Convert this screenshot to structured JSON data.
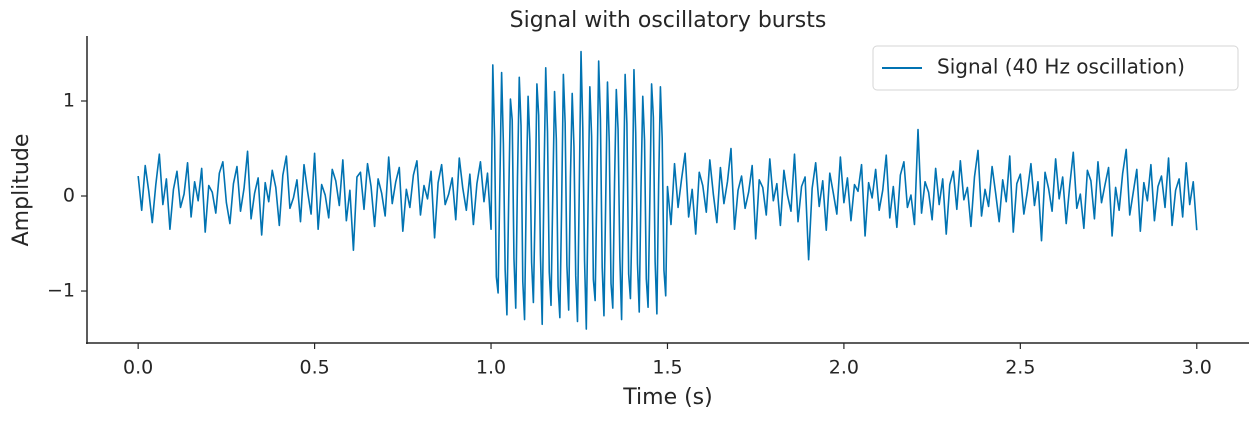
{
  "chart_data": {
    "type": "line",
    "title": "Signal with oscillatory bursts",
    "x_label": "Time (s)",
    "y_label": "Amplitude",
    "legend_position": "upper right",
    "xlim": [
      -0.145,
      3.148
    ],
    "ylim": [
      -1.547,
      1.684
    ],
    "xticks": [
      {
        "value": 0,
        "label": "0.0"
      },
      0.5,
      {
        "value": 1,
        "label": "1.0"
      },
      1.5,
      {
        "value": 2,
        "label": "2.0"
      },
      2.5,
      {
        "value": 3,
        "label": "3.0"
      }
    ],
    "yticks": [
      {
        "value": -1,
        "label": "−1"
      },
      0,
      1
    ],
    "x": [
      0,
      0.01,
      0.02,
      0.03,
      0.04,
      0.05,
      0.06,
      0.07,
      0.08,
      0.09,
      0.1,
      0.11,
      0.12,
      0.13,
      0.14,
      0.15,
      0.16,
      0.17,
      0.18,
      0.19,
      0.2,
      0.21,
      0.22,
      0.23,
      0.24,
      0.25,
      0.26,
      0.27,
      0.28,
      0.29,
      0.3,
      0.31,
      0.32,
      0.33,
      0.34,
      0.35,
      0.36,
      0.37,
      0.38,
      0.39,
      0.4,
      0.41,
      0.42,
      0.43,
      0.44,
      0.45,
      0.46,
      0.47,
      0.48,
      0.49,
      0.5,
      0.51,
      0.52,
      0.53,
      0.54,
      0.55,
      0.56,
      0.57,
      0.58,
      0.59,
      0.6,
      0.61,
      0.62,
      0.63,
      0.64,
      0.65,
      0.66,
      0.67,
      0.68,
      0.69,
      0.7,
      0.71,
      0.72,
      0.73,
      0.74,
      0.75,
      0.76,
      0.77,
      0.78,
      0.79,
      0.8,
      0.81,
      0.82,
      0.83,
      0.84,
      0.85,
      0.86,
      0.87,
      0.88,
      0.89,
      0.9,
      0.91,
      0.92,
      0.93,
      0.94,
      0.95,
      0.96,
      0.97,
      0.98,
      0.99,
      1,
      1.005,
      1.01,
      1.015,
      1.02,
      1.025,
      1.03,
      1.035,
      1.04,
      1.045,
      1.05,
      1.055,
      1.06,
      1.065,
      1.07,
      1.075,
      1.08,
      1.085,
      1.09,
      1.095,
      1.1,
      1.105,
      1.11,
      1.115,
      1.12,
      1.125,
      1.13,
      1.135,
      1.14,
      1.145,
      1.15,
      1.155,
      1.16,
      1.165,
      1.17,
      1.175,
      1.18,
      1.185,
      1.19,
      1.195,
      1.2,
      1.205,
      1.21,
      1.215,
      1.22,
      1.225,
      1.23,
      1.235,
      1.24,
      1.245,
      1.25,
      1.255,
      1.26,
      1.265,
      1.27,
      1.275,
      1.28,
      1.285,
      1.29,
      1.295,
      1.3,
      1.305,
      1.31,
      1.315,
      1.32,
      1.325,
      1.33,
      1.335,
      1.34,
      1.345,
      1.35,
      1.355,
      1.36,
      1.365,
      1.37,
      1.375,
      1.38,
      1.385,
      1.39,
      1.395,
      1.4,
      1.405,
      1.41,
      1.415,
      1.42,
      1.425,
      1.43,
      1.435,
      1.44,
      1.445,
      1.45,
      1.455,
      1.46,
      1.465,
      1.47,
      1.475,
      1.48,
      1.485,
      1.49,
      1.495,
      1.5,
      1.51,
      1.52,
      1.53,
      1.54,
      1.55,
      1.56,
      1.57,
      1.58,
      1.59,
      1.6,
      1.61,
      1.62,
      1.63,
      1.64,
      1.65,
      1.66,
      1.67,
      1.68,
      1.69,
      1.7,
      1.71,
      1.72,
      1.73,
      1.74,
      1.75,
      1.76,
      1.77,
      1.78,
      1.79,
      1.8,
      1.81,
      1.82,
      1.83,
      1.84,
      1.85,
      1.86,
      1.87,
      1.88,
      1.89,
      1.9,
      1.91,
      1.92,
      1.93,
      1.94,
      1.95,
      1.96,
      1.97,
      1.98,
      1.99,
      2,
      2.01,
      2.02,
      2.03,
      2.04,
      2.05,
      2.06,
      2.07,
      2.08,
      2.09,
      2.1,
      2.11,
      2.12,
      2.13,
      2.14,
      2.15,
      2.16,
      2.17,
      2.18,
      2.19,
      2.2,
      2.21,
      2.22,
      2.23,
      2.24,
      2.25,
      2.26,
      2.27,
      2.28,
      2.29,
      2.3,
      2.31,
      2.32,
      2.33,
      2.34,
      2.35,
      2.36,
      2.37,
      2.38,
      2.39,
      2.4,
      2.41,
      2.42,
      2.43,
      2.44,
      2.45,
      2.46,
      2.47,
      2.48,
      2.49,
      2.5,
      2.51,
      2.52,
      2.53,
      2.54,
      2.55,
      2.56,
      2.57,
      2.58,
      2.59,
      2.6,
      2.61,
      2.62,
      2.63,
      2.64,
      2.65,
      2.66,
      2.67,
      2.68,
      2.69,
      2.7,
      2.71,
      2.72,
      2.73,
      2.74,
      2.75,
      2.76,
      2.77,
      2.78,
      2.79,
      2.8,
      2.81,
      2.82,
      2.83,
      2.84,
      2.85,
      2.86,
      2.87,
      2.88,
      2.89,
      2.9,
      2.91,
      2.92,
      2.93,
      2.94,
      2.95,
      2.96,
      2.97,
      2.98,
      2.99,
      3
    ],
    "series": [
      {
        "name": "Signal (40 Hz oscillation)",
        "color": "#0173b2",
        "values": [
          0.21,
          -0.15,
          0.32,
          0.05,
          -0.28,
          0.12,
          0.44,
          -0.09,
          0.18,
          -0.35,
          0.07,
          0.26,
          -0.12,
          0.02,
          0.35,
          -0.22,
          0.15,
          -0.05,
          0.29,
          -0.38,
          0.11,
          0.04,
          -0.18,
          0.24,
          0.36,
          -0.07,
          -0.29,
          0.13,
          0.31,
          -0.16,
          0.08,
          0.47,
          -0.24,
          0.03,
          0.19,
          -0.41,
          0.14,
          -0.06,
          0.27,
          0.09,
          -0.31,
          0.22,
          0.42,
          -0.13,
          -0.02,
          0.17,
          -0.27,
          0.33,
          0.05,
          -0.19,
          0.45,
          -0.35,
          0.12,
          0.01,
          -0.23,
          0.28,
          0.16,
          -0.1,
          0.38,
          -0.26,
          0.06,
          -0.57,
          0.2,
          0.25,
          -0.14,
          0.34,
          0.1,
          -0.32,
          0.18,
          0.03,
          -0.21,
          0.41,
          -0.08,
          0.15,
          0.3,
          -0.37,
          0.07,
          -0.12,
          0.22,
          0.37,
          -0.2,
          0.11,
          -0.03,
          0.26,
          -0.44,
          0.14,
          0.33,
          -0.09,
          0.02,
          0.19,
          -0.25,
          0.4,
          0.08,
          -0.15,
          0.23,
          -0.3,
          0.13,
          0.36,
          -0.06,
          0.24,
          -0.35,
          1.38,
          0.62,
          -0.85,
          -1.02,
          0.12,
          1.3,
          0.55,
          -0.78,
          -1.25,
          -0.05,
          1.02,
          0.8,
          -0.66,
          -1.18,
          0.2,
          1.25,
          0.74,
          -0.9,
          -1.3,
          0.08,
          1.05,
          0.58,
          -0.7,
          -1.12,
          -0.1,
          1.18,
          0.85,
          -0.62,
          -1.35,
          0.15,
          1.35,
          0.68,
          -0.8,
          -1.15,
          0.02,
          1.1,
          0.6,
          -0.95,
          -1.28,
          -0.12,
          1.28,
          0.77,
          -0.73,
          -1.2,
          0.18,
          1.08,
          0.52,
          -0.84,
          -1.32,
          0.05,
          1.52,
          0.72,
          -0.68,
          -1.4,
          -0.08,
          1.15,
          0.63,
          -0.88,
          -1.1,
          0.1,
          1.42,
          0.81,
          -0.75,
          -1.26,
          -0.03,
          1.2,
          0.57,
          -0.92,
          -1.18,
          0.14,
          1.12,
          0.7,
          -0.64,
          -1.3,
          0,
          1.28,
          0.76,
          -0.82,
          -1.08,
          -0.15,
          1.33,
          0.66,
          -0.71,
          -1.22,
          0.09,
          1.05,
          0.59,
          -0.87,
          -1.17,
          -0.06,
          1.18,
          0.83,
          -0.69,
          -1.24,
          0.12,
          1.15,
          0.61,
          -0.78,
          -1.05,
          0.1,
          -0.3,
          0.34,
          -0.12,
          0.18,
          0.45,
          -0.22,
          0.07,
          -0.4,
          0.25,
          0.11,
          -0.17,
          0.38,
          0.02,
          -0.28,
          0.3,
          -0.08,
          0.15,
          0.5,
          -0.35,
          0.06,
          0.21,
          -0.13,
          0.04,
          0.32,
          -0.45,
          0.17,
          0.09,
          -0.2,
          0.39,
          -0.05,
          0.13,
          -0.31,
          0.27,
          0.01,
          -0.16,
          0.44,
          -0.27,
          0.1,
          0.2,
          -0.67,
          0.08,
          0.35,
          -0.11,
          0.16,
          -0.36,
          0.24,
          0.03,
          -0.19,
          0.41,
          -0.07,
          0.19,
          -0.26,
          0.12,
          0.05,
          0.33,
          -0.42,
          0.14,
          -0.02,
          0.28,
          -0.15,
          0.06,
          0.43,
          -0.23,
          0.1,
          -0.33,
          0.22,
          0.36,
          -0.12,
          0.01,
          -0.3,
          0.7,
          -0.18,
          0.15,
          0.04,
          -0.25,
          0.29,
          -0.09,
          0.18,
          -0.4,
          0.12,
          0.26,
          -0.14,
          0.37,
          -0.04,
          0.09,
          -0.32,
          0.2,
          0.48,
          -0.21,
          0.07,
          -0.11,
          0.31,
          0.03,
          -0.27,
          0.17,
          -0.06,
          0.42,
          -0.38,
          0.13,
          0.23,
          -0.19,
          0.05,
          0.34,
          -0.1,
          0.15,
          -0.47,
          0.25,
          0.08,
          -0.16,
          0.39,
          -0.03,
          0.2,
          -0.29,
          0.11,
          0.46,
          -0.13,
          0.02,
          -0.34,
          0.27,
          0.16,
          -0.24,
          0.36,
          -0.07,
          0.12,
          0.3,
          -0.42,
          0.09,
          -0.15,
          0.24,
          0.49,
          -0.2,
          0.04,
          0.28,
          -0.37,
          0.14,
          -0.05,
          0.33,
          -0.26,
          0.1,
          0.21,
          -0.12,
          0.4,
          -0.31,
          0.06,
          0.18,
          -0.22,
          0.35,
          -0.09,
          0.15,
          -0.36
        ]
      }
    ]
  }
}
